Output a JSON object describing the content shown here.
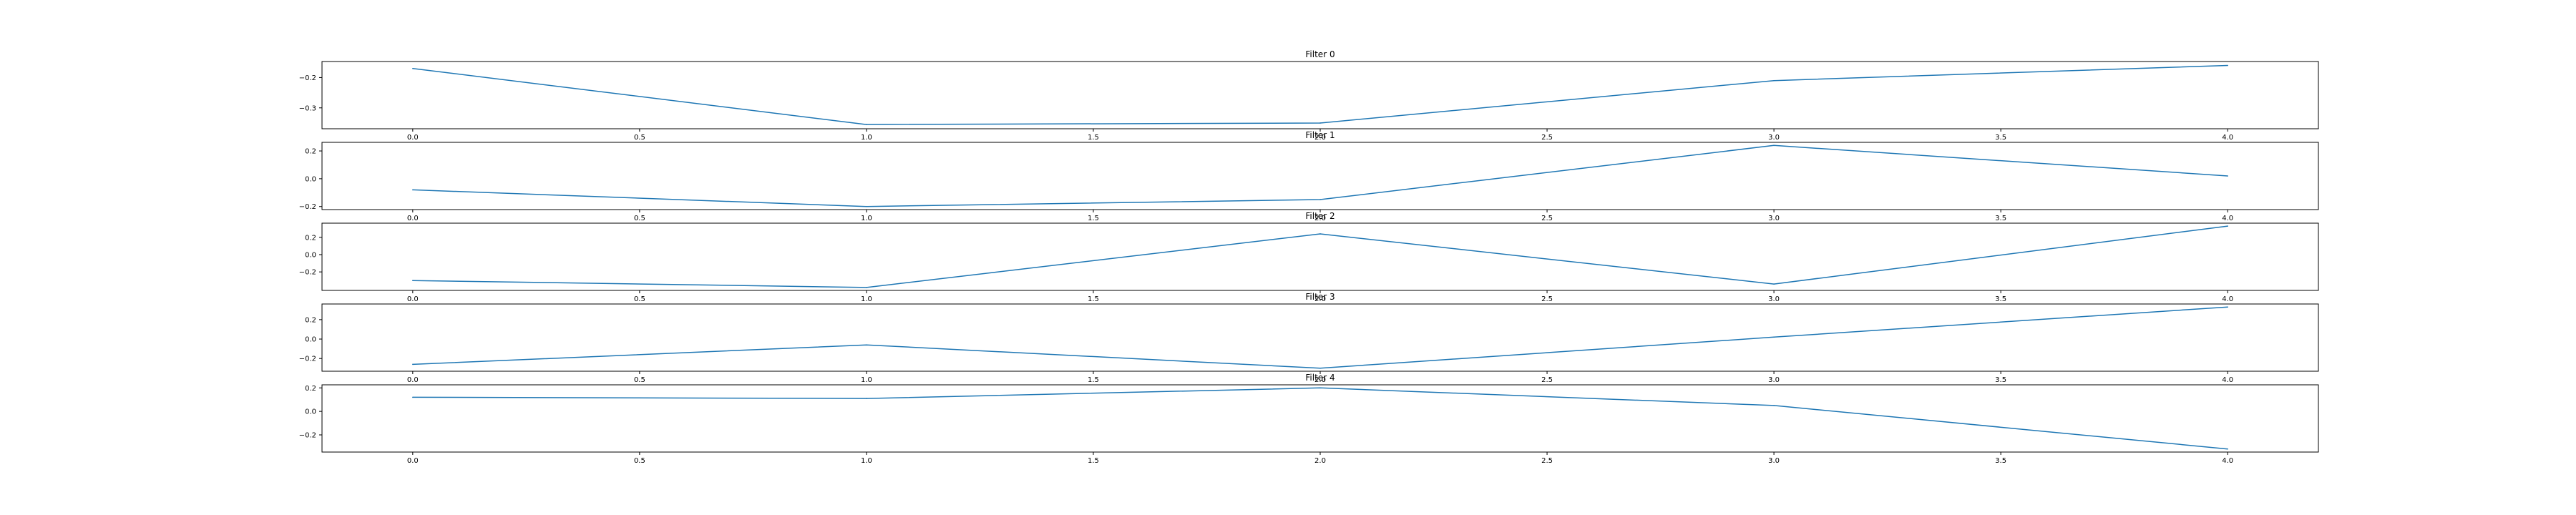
{
  "chart_data": [
    {
      "type": "line",
      "title": "Filter 0",
      "x": [
        0,
        1,
        2,
        3,
        4
      ],
      "values": [
        -0.17,
        -0.355,
        -0.35,
        -0.21,
        -0.16
      ],
      "xticks": [
        "0.0",
        "0.5",
        "1.0",
        "1.5",
        "2.0",
        "2.5",
        "3.0",
        "3.5",
        "4.0"
      ],
      "yticks": [
        "-0.2",
        "-0.3"
      ],
      "ytick_values": [
        -0.2,
        -0.3
      ],
      "ylim": [
        -0.369,
        -0.147
      ],
      "xlim": [
        -0.2,
        4.2
      ],
      "grid": false,
      "color": "#1f77b4"
    },
    {
      "type": "line",
      "title": "Filter 1",
      "x": [
        0,
        1,
        2,
        3,
        4
      ],
      "values": [
        -0.08,
        -0.2,
        -0.15,
        0.24,
        0.02
      ],
      "xticks": [
        "0.0",
        "0.5",
        "1.0",
        "1.5",
        "2.0",
        "2.5",
        "3.0",
        "3.5",
        "4.0"
      ],
      "yticks": [
        "0.2",
        "0.0",
        "-0.2"
      ],
      "ytick_values": [
        0.2,
        0.0,
        -0.2
      ],
      "ylim": [
        -0.222,
        0.262
      ],
      "xlim": [
        -0.2,
        4.2
      ],
      "grid": false,
      "color": "#1f77b4"
    },
    {
      "type": "line",
      "title": "Filter 2",
      "x": [
        0,
        1,
        2,
        3,
        4
      ],
      "values": [
        -0.3,
        -0.38,
        0.24,
        -0.34,
        0.33
      ],
      "xticks": [
        "0.0",
        "0.5",
        "1.0",
        "1.5",
        "2.0",
        "2.5",
        "3.0",
        "3.5",
        "4.0"
      ],
      "yticks": [
        "0.2",
        "0.0",
        "-0.2"
      ],
      "ytick_values": [
        0.2,
        0.0,
        -0.2
      ],
      "ylim": [
        -0.414,
        0.364
      ],
      "xlim": [
        -0.2,
        4.2
      ],
      "grid": false,
      "color": "#1f77b4"
    },
    {
      "type": "line",
      "title": "Filter 3",
      "x": [
        0,
        1,
        2,
        3,
        4
      ],
      "values": [
        -0.26,
        -0.06,
        -0.3,
        0.02,
        0.33
      ],
      "xticks": [
        "0.0",
        "0.5",
        "1.0",
        "1.5",
        "2.0",
        "2.5",
        "3.0",
        "3.5",
        "4.0"
      ],
      "yticks": [
        "0.2",
        "0.0",
        "-0.2"
      ],
      "ytick_values": [
        0.2,
        0.0,
        -0.2
      ],
      "ylim": [
        -0.331,
        0.361
      ],
      "xlim": [
        -0.2,
        4.2
      ],
      "grid": false,
      "color": "#1f77b4"
    },
    {
      "type": "line",
      "title": "Filter 4",
      "x": [
        0,
        1,
        2,
        3,
        4
      ],
      "values": [
        0.12,
        0.11,
        0.2,
        0.05,
        -0.32
      ],
      "xticks": [
        "0.0",
        "0.5",
        "1.0",
        "1.5",
        "2.0",
        "2.5",
        "3.0",
        "3.5",
        "4.0"
      ],
      "yticks": [
        "0.2",
        "0.0",
        "-0.2"
      ],
      "ytick_values": [
        0.2,
        0.0,
        -0.2
      ],
      "ylim": [
        -0.346,
        0.226
      ],
      "xlim": [
        -0.2,
        4.2
      ],
      "grid": false,
      "color": "#1f77b4"
    }
  ]
}
